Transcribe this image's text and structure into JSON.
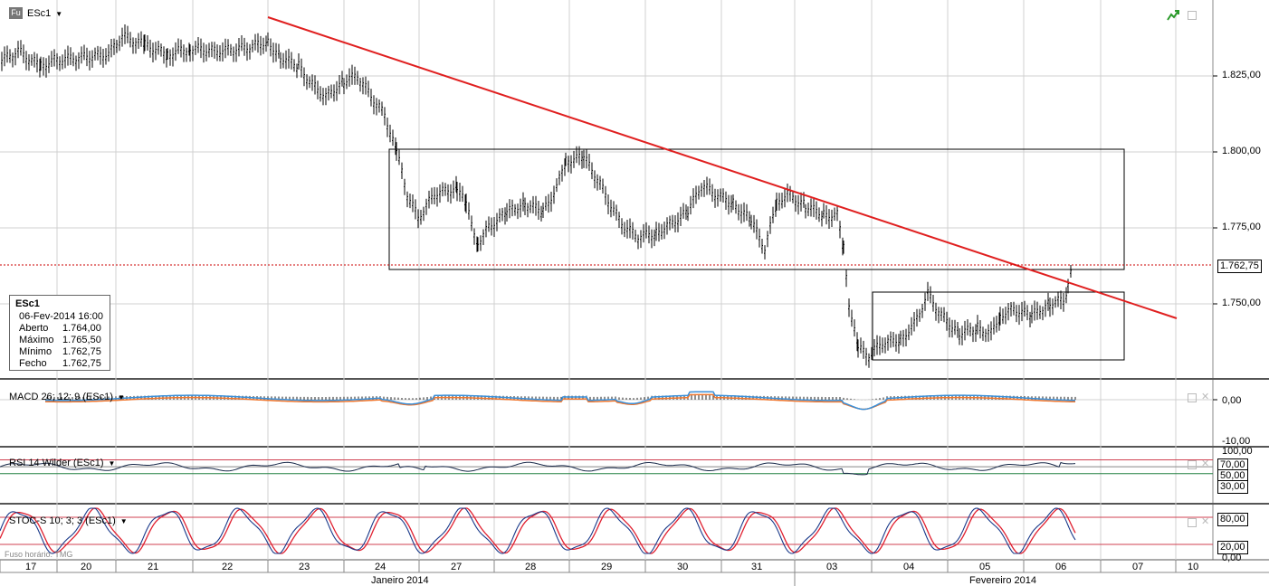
{
  "main": {
    "badge": "Fu",
    "symbol": "ESc1",
    "price_line": "1.762,75",
    "y_ticks": [
      "1.825,00",
      "1.800,00",
      "1.775,00",
      "1.750,00"
    ],
    "info": {
      "title": "ESc1",
      "datetime": "06-Fev-2014 16:00",
      "rows": [
        {
          "label": "Aberto",
          "value": "1.764,00"
        },
        {
          "label": "Máximo",
          "value": "1.765,50"
        },
        {
          "label": "Mínimo",
          "value": "1.762,75"
        },
        {
          "label": "Fecho",
          "value": "1.762,75"
        }
      ]
    }
  },
  "macd": {
    "title": "MACD 26; 12; 9 (ESc1)",
    "y_ticks": [
      "0,00",
      "-10,00"
    ]
  },
  "rsi": {
    "title": "RSI 14 Wilder (ESc1)",
    "y_ticks": [
      "100,00",
      "70,00",
      "50,00",
      "30,00"
    ]
  },
  "stoc": {
    "title": "STOC-S 10; 3; 3 (ESc1)",
    "y_ticks": [
      "80,00",
      "20,00",
      "0,00"
    ],
    "timezone": "Fuso horário: TMG"
  },
  "x_axis": {
    "days": [
      "17",
      "20",
      "21",
      "22",
      "23",
      "24",
      "27",
      "28",
      "29",
      "30",
      "31",
      "03",
      "04",
      "05",
      "06",
      "07",
      "10"
    ],
    "months": [
      "Janeiro 2014",
      "Fevereiro 2014"
    ]
  },
  "colors": {
    "trendline": "#e02020",
    "price_dotted": "#cc0000",
    "macd_line": "#3a8fd8",
    "signal_line": "#f07830",
    "rsi_line": "#1a2a4a",
    "stoc_k": "#1a3a8a",
    "stoc_d": "#e02030",
    "level_red": "#d04050",
    "level_green": "#208040",
    "grid": "#d0d0d0"
  }
}
